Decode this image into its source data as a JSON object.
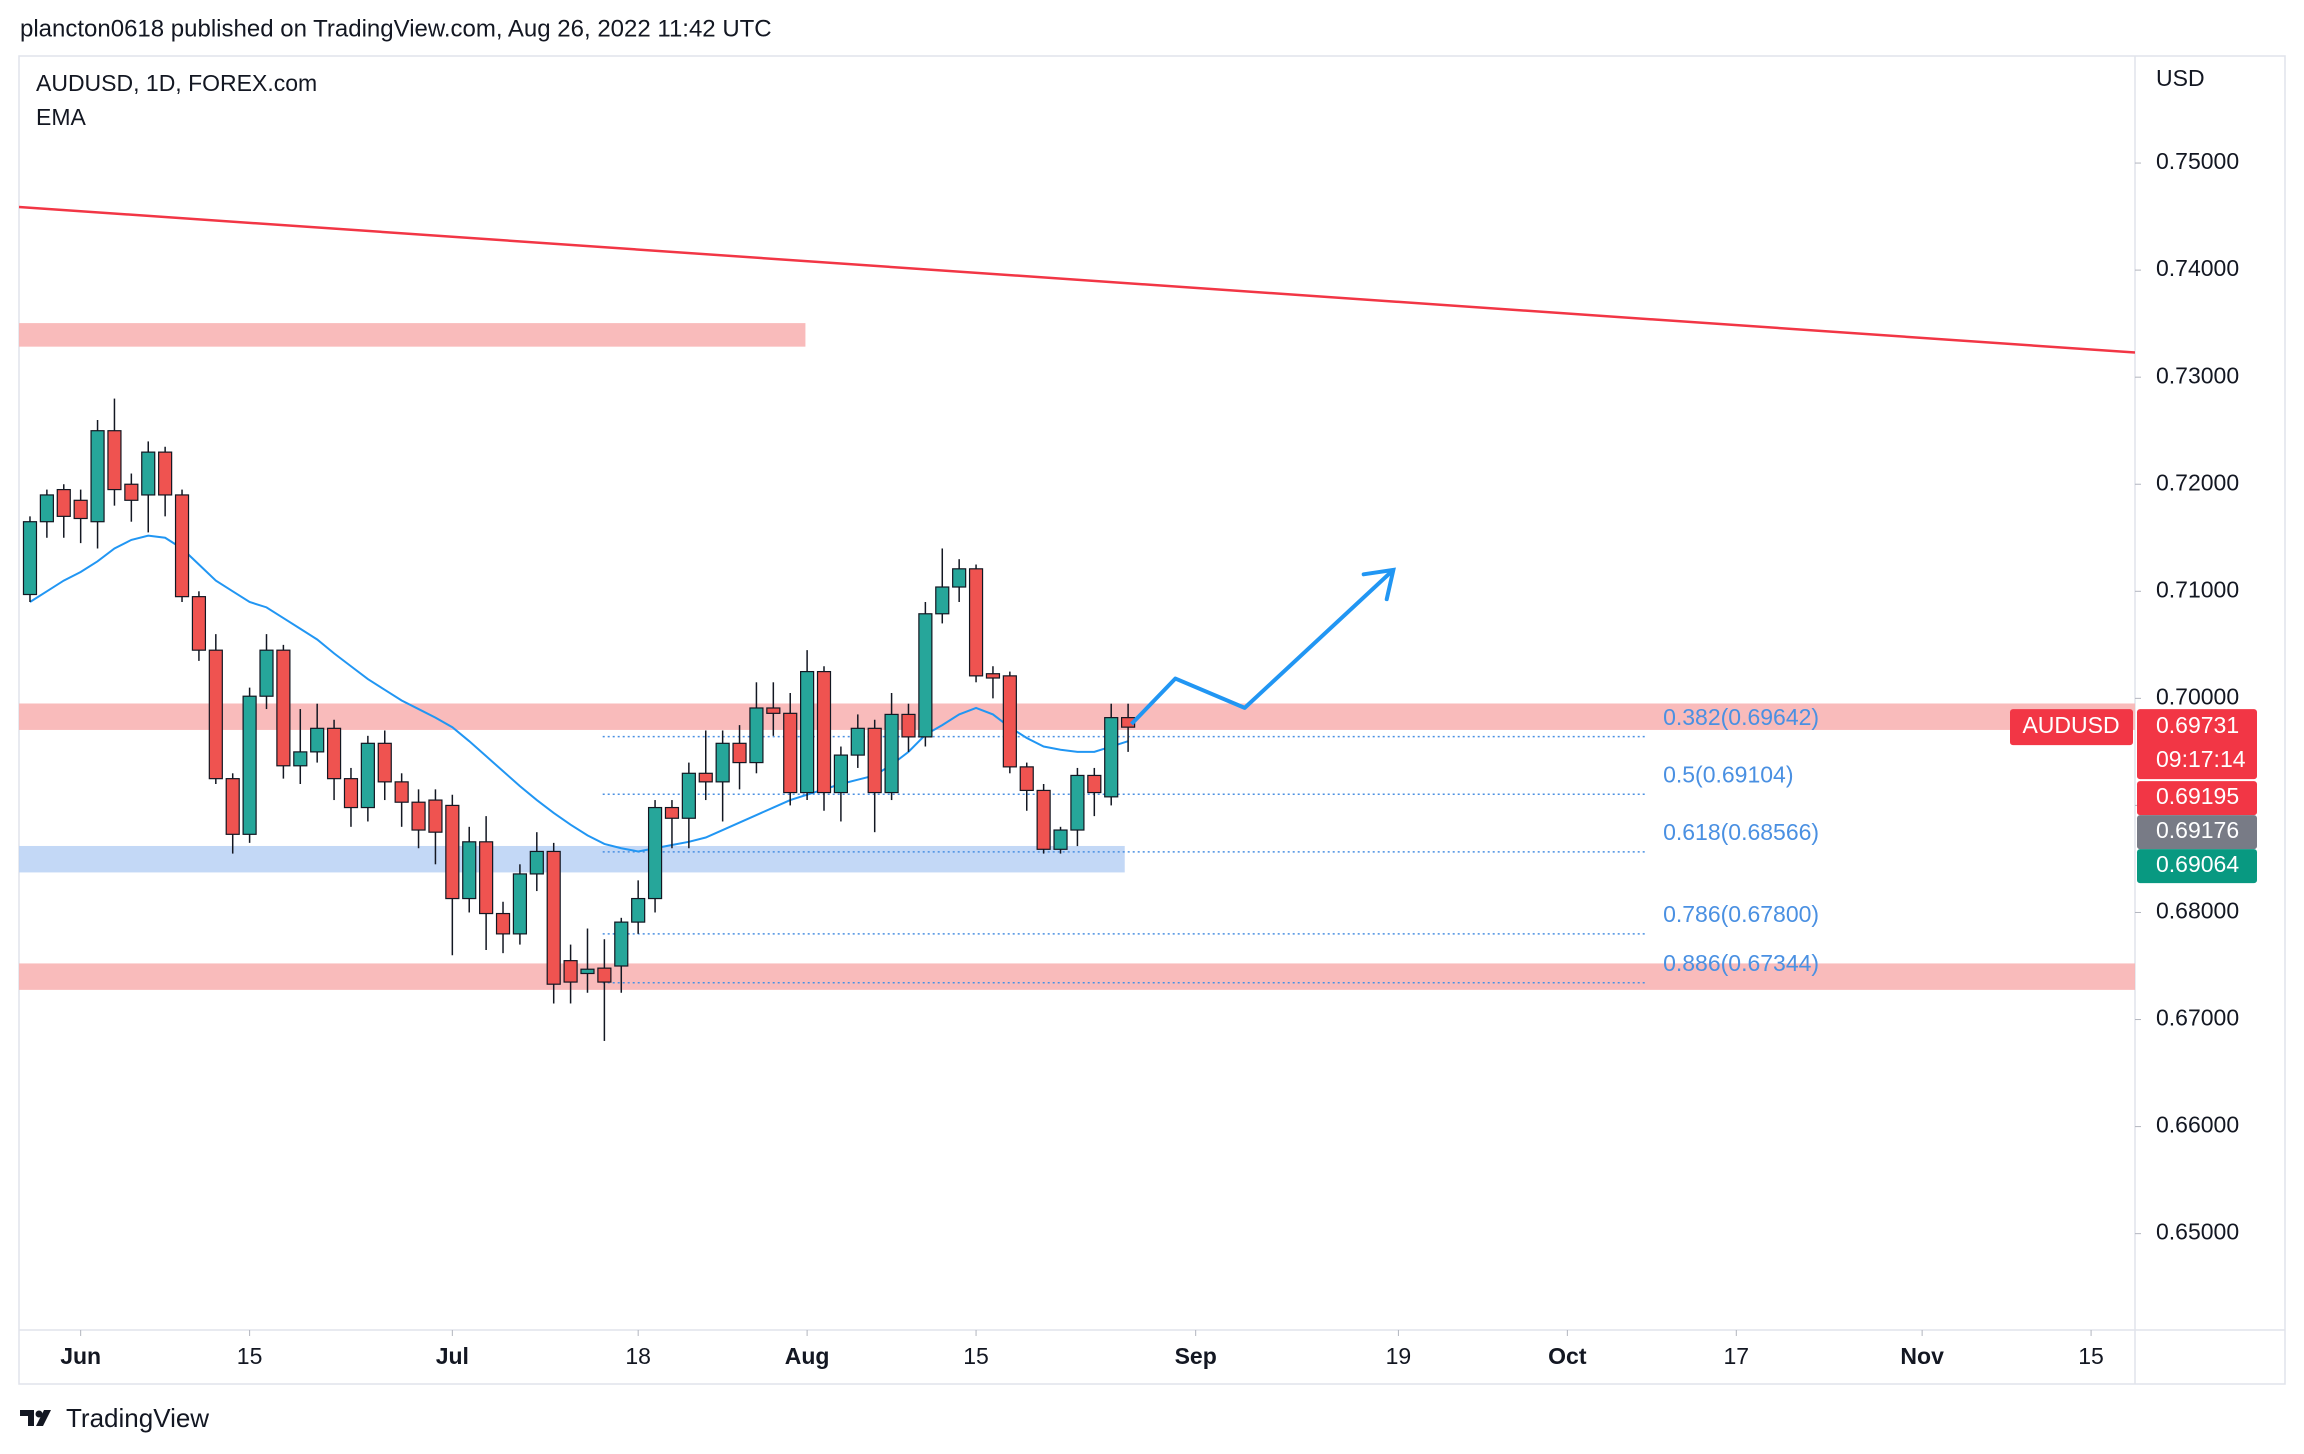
{
  "header": {
    "title": "plancton0618 published on TradingView.com, Aug 26, 2022 11:42 UTC"
  },
  "footer": {
    "brand": "TradingView"
  },
  "chart_data": {
    "type": "candlestick",
    "title": "AUDUSD, 1D, FOREX.com",
    "indicator": "EMA",
    "currency": "USD",
    "up_color": "#26a69a",
    "down_color": "#ef5350",
    "xlim": [
      -0.65,
      124.6
    ],
    "ylim": [
      0.641,
      0.76
    ],
    "xticks": [
      {
        "value": 3,
        "label": "Jun"
      },
      {
        "value": 13,
        "label": "15"
      },
      {
        "value": 25,
        "label": "Jul"
      },
      {
        "value": 36,
        "label": "18"
      },
      {
        "value": 46,
        "label": "Aug"
      },
      {
        "value": 56,
        "label": "15"
      },
      {
        "value": 69,
        "label": "Sep"
      },
      {
        "value": 81,
        "label": "19"
      },
      {
        "value": 91,
        "label": "Oct"
      },
      {
        "value": 101,
        "label": "17"
      },
      {
        "value": 112,
        "label": "Nov"
      },
      {
        "value": 122,
        "label": "15"
      }
    ],
    "yticks": [
      {
        "value": 0.65,
        "label": "0.65000"
      },
      {
        "value": 0.66,
        "label": "0.66000"
      },
      {
        "value": 0.67,
        "label": "0.67000"
      },
      {
        "value": 0.68,
        "label": "0.68000"
      },
      {
        "value": 0.69,
        "label": "0.69000"
      },
      {
        "value": 0.7,
        "label": "0.70000"
      },
      {
        "value": 0.71,
        "label": "0.71000"
      },
      {
        "value": 0.72,
        "label": "0.72000"
      },
      {
        "value": 0.73,
        "label": "0.73000"
      },
      {
        "value": 0.74,
        "label": "0.74000"
      },
      {
        "value": 0.75,
        "label": "0.75000"
      }
    ],
    "open": [
      0.7097,
      0.7165,
      0.7195,
      0.7185,
      0.7165,
      0.725,
      0.72,
      0.719,
      0.723,
      0.719,
      0.7095,
      0.7045,
      0.6925,
      0.6873,
      0.7002,
      0.7045,
      0.6937,
      0.695,
      0.6972,
      0.6925,
      0.6898,
      0.6958,
      0.6922,
      0.6903,
      0.6905,
      0.69,
      0.6813,
      0.6866,
      0.6799,
      0.678,
      0.6836,
      0.6857,
      0.6755,
      0.6743,
      0.6748,
      0.675,
      0.6791,
      0.6813,
      0.6898,
      0.6888,
      0.693,
      0.6922,
      0.6958,
      0.694,
      0.6991,
      0.6986,
      0.6912,
      0.7025,
      0.6912,
      0.6947,
      0.6972,
      0.6912,
      0.6985,
      0.6964,
      0.7079,
      0.7104,
      0.7121,
      0.7023,
      0.7021,
      0.6936,
      0.6914,
      0.6859,
      0.6877,
      0.6928,
      0.6908,
      0.6982
    ],
    "high": [
      0.717,
      0.7195,
      0.72,
      0.7195,
      0.726,
      0.728,
      0.721,
      0.724,
      0.7235,
      0.7195,
      0.71,
      0.706,
      0.693,
      0.701,
      0.706,
      0.705,
      0.699,
      0.6995,
      0.698,
      0.6935,
      0.6965,
      0.697,
      0.693,
      0.6915,
      0.6915,
      0.691,
      0.688,
      0.689,
      0.681,
      0.6845,
      0.6875,
      0.6865,
      0.677,
      0.6785,
      0.6775,
      0.6795,
      0.683,
      0.6905,
      0.6905,
      0.694,
      0.697,
      0.697,
      0.6975,
      0.7015,
      0.7015,
      0.7005,
      0.7045,
      0.703,
      0.6955,
      0.6985,
      0.698,
      0.7005,
      0.6995,
      0.709,
      0.714,
      0.713,
      0.7125,
      0.703,
      0.7025,
      0.694,
      0.692,
      0.688,
      0.6935,
      0.6935,
      0.6995,
      0.6995
    ],
    "low": [
      0.709,
      0.715,
      0.715,
      0.7145,
      0.714,
      0.718,
      0.7165,
      0.7155,
      0.717,
      0.709,
      0.7035,
      0.692,
      0.6855,
      0.6865,
      0.699,
      0.6925,
      0.692,
      0.694,
      0.6905,
      0.688,
      0.6885,
      0.6905,
      0.688,
      0.686,
      0.6845,
      0.676,
      0.68,
      0.6765,
      0.6762,
      0.677,
      0.682,
      0.6715,
      0.6715,
      0.6725,
      0.668,
      0.6725,
      0.678,
      0.68,
      0.686,
      0.686,
      0.6905,
      0.6885,
      0.6915,
      0.693,
      0.6965,
      0.69,
      0.6905,
      0.6895,
      0.6885,
      0.6935,
      0.6875,
      0.6905,
      0.695,
      0.6955,
      0.707,
      0.709,
      0.7015,
      0.7,
      0.693,
      0.6895,
      0.6855,
      0.6855,
      0.6862,
      0.689,
      0.69,
      0.695
    ],
    "close": [
      0.7165,
      0.719,
      0.717,
      0.7168,
      0.725,
      0.7195,
      0.7185,
      0.723,
      0.719,
      0.7095,
      0.7045,
      0.6925,
      0.6873,
      0.7002,
      0.7045,
      0.6937,
      0.695,
      0.6972,
      0.6925,
      0.6898,
      0.6958,
      0.6922,
      0.6903,
      0.6877,
      0.6875,
      0.6813,
      0.6866,
      0.6799,
      0.678,
      0.6836,
      0.6857,
      0.6733,
      0.6735,
      0.6747,
      0.6735,
      0.6791,
      0.6813,
      0.6898,
      0.6888,
      0.693,
      0.6922,
      0.6958,
      0.694,
      0.6991,
      0.6986,
      0.6912,
      0.7025,
      0.6912,
      0.6947,
      0.6972,
      0.6912,
      0.6985,
      0.6964,
      0.7079,
      0.7104,
      0.7121,
      0.7021,
      0.7019,
      0.6936,
      0.6914,
      0.6859,
      0.6877,
      0.6928,
      0.6912,
      0.6982,
      0.69731
    ],
    "ema": {
      "color": "#2196f3",
      "values": [
        0.709,
        0.71,
        0.711,
        0.7118,
        0.7128,
        0.714,
        0.7148,
        0.7152,
        0.715,
        0.714,
        0.7125,
        0.711,
        0.71,
        0.709,
        0.7085,
        0.7075,
        0.7065,
        0.7055,
        0.7042,
        0.703,
        0.7018,
        0.7008,
        0.6998,
        0.699,
        0.6982,
        0.6973,
        0.696,
        0.6946,
        0.6932,
        0.6918,
        0.6905,
        0.6893,
        0.6882,
        0.6872,
        0.6864,
        0.686,
        0.6857,
        0.686,
        0.6863,
        0.6866,
        0.687,
        0.6877,
        0.6884,
        0.6891,
        0.6898,
        0.6905,
        0.691,
        0.6915,
        0.692,
        0.6924,
        0.6928,
        0.6938,
        0.695,
        0.6966,
        0.6975,
        0.6985,
        0.6991,
        0.6985,
        0.6973,
        0.6963,
        0.6955,
        0.6952,
        0.695,
        0.695,
        0.6955,
        0.696
      ]
    },
    "trendline": {
      "color": "#f23645",
      "x": [
        -0.65,
        124.6
      ],
      "y": [
        0.7459,
        0.7323
      ]
    },
    "zones": [
      {
        "x": [
          -0.65,
          45.9
        ],
        "y": [
          0.73285,
          0.73505
        ],
        "color": "#f8b4b4"
      },
      {
        "x": [
          -0.65,
          124.6
        ],
        "y": [
          0.69705,
          0.69952
        ],
        "color": "#f8b4b4"
      },
      {
        "x": [
          -0.65,
          64.8
        ],
        "y": [
          0.68374,
          0.68621
        ],
        "color": "#bcd4f5"
      },
      {
        "x": [
          -0.65,
          124.6
        ],
        "y": [
          0.67277,
          0.67524
        ],
        "color": "#f8b4b4"
      }
    ],
    "fib": {
      "x": [
        33.9,
        95.6
      ],
      "color": "#4a90e2",
      "levels": [
        {
          "value": 0.69642,
          "label": "0.382(0.69642)"
        },
        {
          "value": 0.69104,
          "label": "0.5(0.69104)"
        },
        {
          "value": 0.68566,
          "label": "0.618(0.68566)"
        },
        {
          "value": 0.678,
          "label": "0.786(0.67800)"
        },
        {
          "value": 0.67344,
          "label": "0.886(0.67344)"
        }
      ]
    },
    "projection": {
      "color": "#2196f3",
      "x": [
        65.2,
        67.8,
        71.9,
        80.7
      ],
      "y": [
        0.6976,
        0.70185,
        0.69911,
        0.712
      ]
    },
    "last_price": {
      "name": "AUDUSD",
      "value": 0.69731,
      "countdown": "09:17:14",
      "color": "#f23645"
    },
    "price_labels": [
      {
        "value": 0.69195,
        "color": "#f23645"
      },
      {
        "value": 0.69176,
        "color": "#787b86"
      },
      {
        "value": 0.69064,
        "color": "#089981"
      }
    ]
  }
}
